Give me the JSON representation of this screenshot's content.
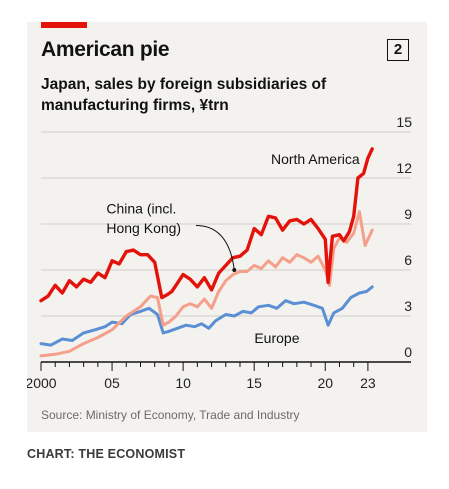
{
  "header": {
    "title": "American pie",
    "badge": "2"
  },
  "footer": {
    "source": "Source: Ministry of Economy, Trade and Industry",
    "credit": "CHART: THE ECONOMIST"
  },
  "colors": {
    "north_america": "#e3120b",
    "china": "#f5a08a",
    "europe": "#5b8fd4",
    "accent_bar": "#e3120b"
  },
  "chart_data": {
    "type": "line",
    "title": "Japan, sales by foreign subsidiaries of manufacturing firms, ¥trn",
    "xlabel": "",
    "ylabel": "",
    "xlim": [
      2000,
      2023.5
    ],
    "ylim": [
      0,
      15
    ],
    "y_ticks": [
      0,
      3,
      6,
      9,
      12,
      15
    ],
    "y_axis_side": "right",
    "x_ticks": [
      2000,
      2005,
      2010,
      2015,
      2020,
      2023
    ],
    "x_tick_labels": [
      "2000",
      "05",
      "10",
      "15",
      "20",
      "23"
    ],
    "grid": true,
    "annotations": [
      {
        "text": "North America",
        "series": "North America"
      },
      {
        "text": "China (incl.",
        "series": "China (incl. Hong Kong)"
      },
      {
        "text": "Hong Kong)",
        "series": "China (incl. Hong Kong)"
      },
      {
        "text": "Europe",
        "series": "Europe"
      }
    ],
    "series": [
      {
        "name": "North America",
        "color": "#e3120b",
        "points": [
          [
            2000.0,
            4.0
          ],
          [
            2000.5,
            4.3
          ],
          [
            2001.0,
            5.0
          ],
          [
            2001.5,
            4.5
          ],
          [
            2002.0,
            5.3
          ],
          [
            2002.5,
            4.9
          ],
          [
            2003.0,
            5.4
          ],
          [
            2003.5,
            5.2
          ],
          [
            2004.0,
            5.8
          ],
          [
            2004.5,
            5.5
          ],
          [
            2005.0,
            6.6
          ],
          [
            2005.5,
            6.4
          ],
          [
            2006.0,
            7.2
          ],
          [
            2006.5,
            7.3
          ],
          [
            2007.0,
            7.0
          ],
          [
            2007.5,
            7.0
          ],
          [
            2008.0,
            6.5
          ],
          [
            2008.5,
            4.2
          ],
          [
            2008.9,
            4.4
          ],
          [
            2009.2,
            4.6
          ],
          [
            2009.5,
            5.0
          ],
          [
            2010.0,
            5.7
          ],
          [
            2010.5,
            5.4
          ],
          [
            2011.0,
            4.9
          ],
          [
            2011.5,
            5.5
          ],
          [
            2012.0,
            4.7
          ],
          [
            2012.5,
            5.8
          ],
          [
            2013.0,
            6.3
          ],
          [
            2013.5,
            6.8
          ],
          [
            2014.0,
            6.9
          ],
          [
            2014.5,
            7.3
          ],
          [
            2015.0,
            8.7
          ],
          [
            2015.5,
            8.3
          ],
          [
            2016.0,
            9.5
          ],
          [
            2016.5,
            9.4
          ],
          [
            2017.0,
            8.6
          ],
          [
            2017.5,
            9.2
          ],
          [
            2018.0,
            9.3
          ],
          [
            2018.5,
            9.0
          ],
          [
            2019.0,
            9.3
          ],
          [
            2019.5,
            8.7
          ],
          [
            2020.0,
            8.0
          ],
          [
            2020.2,
            5.2
          ],
          [
            2020.5,
            8.2
          ],
          [
            2021.0,
            8.3
          ],
          [
            2021.3,
            7.9
          ],
          [
            2021.7,
            8.5
          ],
          [
            2022.0,
            9.5
          ],
          [
            2022.3,
            12.0
          ],
          [
            2022.7,
            12.3
          ],
          [
            2023.0,
            13.3
          ],
          [
            2023.3,
            13.9
          ]
        ]
      },
      {
        "name": "China (incl. Hong Kong)",
        "color": "#f5a08a",
        "points": [
          [
            2000.0,
            0.4
          ],
          [
            2001.0,
            0.5
          ],
          [
            2002.0,
            0.7
          ],
          [
            2003.0,
            1.2
          ],
          [
            2004.0,
            1.6
          ],
          [
            2005.0,
            2.1
          ],
          [
            2006.0,
            3.0
          ],
          [
            2007.0,
            3.6
          ],
          [
            2007.7,
            4.3
          ],
          [
            2008.2,
            4.2
          ],
          [
            2008.6,
            2.4
          ],
          [
            2009.0,
            2.6
          ],
          [
            2009.5,
            3.0
          ],
          [
            2010.0,
            3.6
          ],
          [
            2010.5,
            3.8
          ],
          [
            2011.0,
            3.6
          ],
          [
            2011.5,
            4.1
          ],
          [
            2012.0,
            3.5
          ],
          [
            2012.5,
            4.6
          ],
          [
            2013.0,
            5.3
          ],
          [
            2013.5,
            5.7
          ],
          [
            2014.0,
            5.9
          ],
          [
            2014.5,
            5.9
          ],
          [
            2015.0,
            6.3
          ],
          [
            2015.5,
            6.1
          ],
          [
            2016.0,
            6.6
          ],
          [
            2016.5,
            6.2
          ],
          [
            2017.0,
            6.8
          ],
          [
            2017.5,
            6.5
          ],
          [
            2018.0,
            7.0
          ],
          [
            2018.5,
            6.8
          ],
          [
            2019.0,
            6.5
          ],
          [
            2019.5,
            6.9
          ],
          [
            2020.0,
            6.0
          ],
          [
            2020.3,
            5.0
          ],
          [
            2020.6,
            7.4
          ],
          [
            2021.0,
            8.1
          ],
          [
            2021.5,
            7.8
          ],
          [
            2022.0,
            8.4
          ],
          [
            2022.4,
            9.8
          ],
          [
            2022.8,
            7.6
          ],
          [
            2023.3,
            8.6
          ]
        ]
      },
      {
        "name": "Europe",
        "color": "#5b8fd4",
        "points": [
          [
            2000.0,
            1.2
          ],
          [
            2000.7,
            1.1
          ],
          [
            2001.5,
            1.5
          ],
          [
            2002.2,
            1.4
          ],
          [
            2003.0,
            1.9
          ],
          [
            2003.8,
            2.1
          ],
          [
            2004.5,
            2.3
          ],
          [
            2005.0,
            2.6
          ],
          [
            2005.7,
            2.5
          ],
          [
            2006.3,
            3.1
          ],
          [
            2007.0,
            3.3
          ],
          [
            2007.6,
            3.5
          ],
          [
            2008.2,
            3.1
          ],
          [
            2008.6,
            1.9
          ],
          [
            2009.0,
            2.0
          ],
          [
            2009.6,
            2.2
          ],
          [
            2010.2,
            2.4
          ],
          [
            2010.8,
            2.3
          ],
          [
            2011.3,
            2.5
          ],
          [
            2011.8,
            2.2
          ],
          [
            2012.3,
            2.7
          ],
          [
            2013.0,
            3.1
          ],
          [
            2013.6,
            3.0
          ],
          [
            2014.2,
            3.3
          ],
          [
            2014.8,
            3.2
          ],
          [
            2015.3,
            3.6
          ],
          [
            2016.0,
            3.7
          ],
          [
            2016.6,
            3.5
          ],
          [
            2017.2,
            4.0
          ],
          [
            2017.8,
            3.8
          ],
          [
            2018.5,
            3.9
          ],
          [
            2019.2,
            3.7
          ],
          [
            2019.8,
            3.5
          ],
          [
            2020.2,
            2.4
          ],
          [
            2020.6,
            3.2
          ],
          [
            2021.2,
            3.5
          ],
          [
            2021.8,
            4.2
          ],
          [
            2022.4,
            4.5
          ],
          [
            2022.9,
            4.6
          ],
          [
            2023.3,
            4.9
          ]
        ]
      }
    ]
  }
}
